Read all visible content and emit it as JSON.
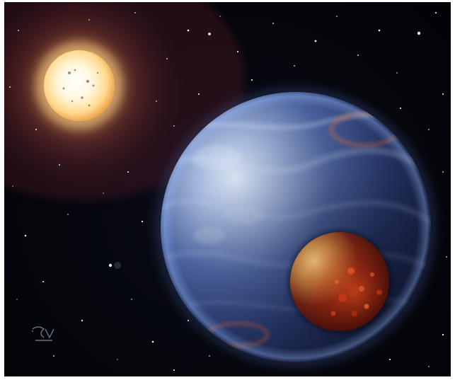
{
  "scene": {
    "subject": "star-planet-moon",
    "colors": {
      "space": "#03040a",
      "sun_core": "#fff8e6",
      "sun_glow": "#e8a35a",
      "planet_light": "#b9c9e8",
      "planet_dark": "#1a2648",
      "moon_light": "#d8a868",
      "moon_dark": "#3a0c08"
    }
  }
}
